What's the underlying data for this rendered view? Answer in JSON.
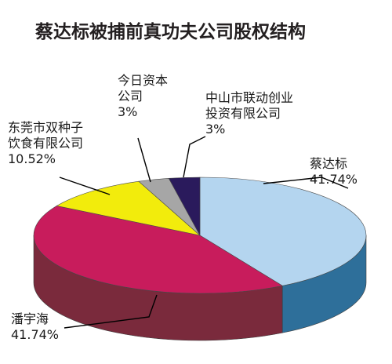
{
  "chart_data": {
    "type": "pie",
    "title": "蔡达标被捕前真功夫公司股权结构",
    "slices": [
      {
        "name_lines": [
          "蔡达标"
        ],
        "label": "41.74%",
        "value": 41.74,
        "color": "#b4d5ef",
        "side": "#2e6f9a"
      },
      {
        "name_lines": [
          "潘宇海"
        ],
        "label": "41.74%",
        "value": 41.74,
        "color": "#c81c5c",
        "side": "#7a2a3c"
      },
      {
        "name_lines": [
          "东莞市双种子",
          "饮食有限公司"
        ],
        "label": "10.52%",
        "value": 10.52,
        "color": "#f2ec0c",
        "side": "#8a8a20"
      },
      {
        "name_lines": [
          "今日资本",
          "公司"
        ],
        "label": "3%",
        "value": 3,
        "color": "#a6a6a6",
        "side": "#555555"
      },
      {
        "name_lines": [
          "中山市联动创业",
          "投资有限公司"
        ],
        "label": "3%",
        "value": 3,
        "color": "#2a1a5c",
        "side": "#1a1036"
      }
    ]
  }
}
